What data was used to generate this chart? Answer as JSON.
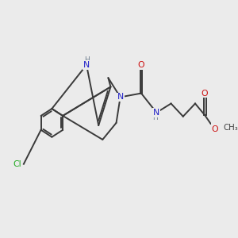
{
  "bg_color": "#ebebeb",
  "bond_color": "#3a3a3a",
  "n_color": "#2020c8",
  "o_color": "#cc1010",
  "cl_color": "#22aa22",
  "h_color": "#708090",
  "lw": 1.4,
  "dbo": 0.055,
  "xlim": [
    0,
    10
  ],
  "ylim": [
    0,
    10
  ]
}
